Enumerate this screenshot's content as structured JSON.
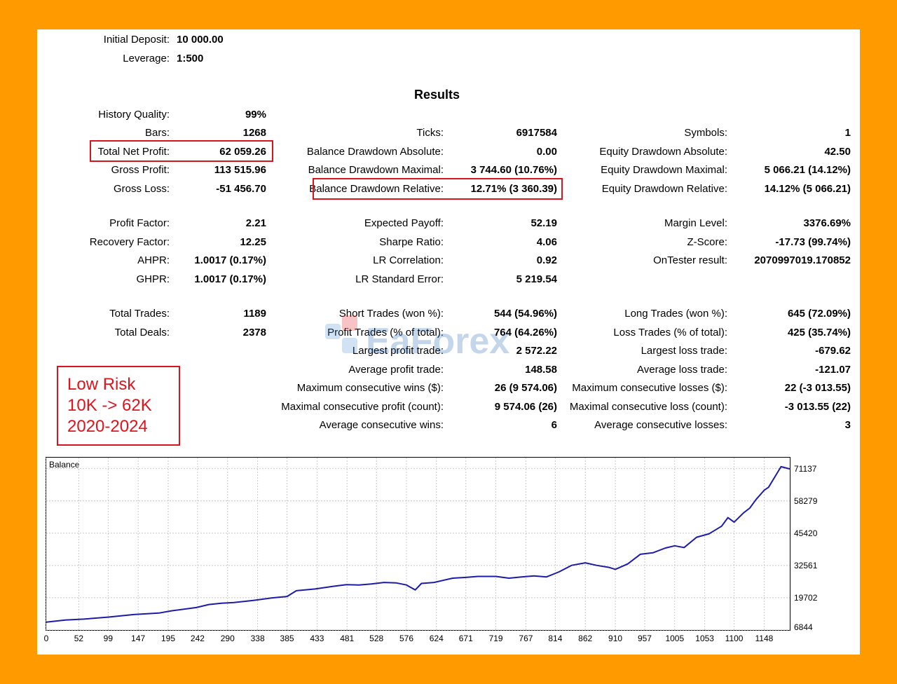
{
  "header": {
    "initial_deposit_label": "Initial Deposit:",
    "initial_deposit_value": "10 000.00",
    "leverage_label": "Leverage:",
    "leverage_value": "1:500"
  },
  "results_title": "Results",
  "col1": [
    {
      "label": "History Quality:",
      "value": "99%"
    },
    {
      "label": "Bars:",
      "value": "1268"
    },
    {
      "label": "Total Net Profit:",
      "value": "62 059.26"
    },
    {
      "label": "Gross Profit:",
      "value": "113 515.96"
    },
    {
      "label": "Gross Loss:",
      "value": "-51 456.70"
    },
    {
      "label": "Profit Factor:",
      "value": "2.21"
    },
    {
      "label": "Recovery Factor:",
      "value": "12.25"
    },
    {
      "label": "AHPR:",
      "value": "1.0017 (0.17%)"
    },
    {
      "label": "GHPR:",
      "value": "1.0017 (0.17%)"
    },
    {
      "label": "Total Trades:",
      "value": "1189"
    },
    {
      "label": "Total Deals:",
      "value": "2378"
    }
  ],
  "col2": [
    {
      "label": "Ticks:",
      "value": "6917584"
    },
    {
      "label": "Balance Drawdown Absolute:",
      "value": "0.00"
    },
    {
      "label": "Balance Drawdown Maximal:",
      "value": "3 744.60 (10.76%)"
    },
    {
      "label": "Balance Drawdown Relative:",
      "value": "12.71% (3 360.39)"
    },
    {
      "label": "Expected Payoff:",
      "value": "52.19"
    },
    {
      "label": "Sharpe Ratio:",
      "value": "4.06"
    },
    {
      "label": "LR Correlation:",
      "value": "0.92"
    },
    {
      "label": "LR Standard Error:",
      "value": "5 219.54"
    },
    {
      "label": "Short Trades (won %):",
      "value": "544 (54.96%)"
    },
    {
      "label": "Profit Trades (% of total):",
      "value": "764 (64.26%)"
    },
    {
      "label": "Largest profit trade:",
      "value": "2 572.22"
    },
    {
      "label": "Average profit trade:",
      "value": "148.58"
    },
    {
      "label": "Maximum consecutive wins ($):",
      "value": "26 (9 574.06)"
    },
    {
      "label": "Maximal consecutive profit (count):",
      "value": "9 574.06 (26)"
    },
    {
      "label": "Average consecutive wins:",
      "value": "6"
    }
  ],
  "col3": [
    {
      "label": "Symbols:",
      "value": "1"
    },
    {
      "label": "Equity Drawdown Absolute:",
      "value": "42.50"
    },
    {
      "label": "Equity Drawdown Maximal:",
      "value": "5 066.21 (14.12%)"
    },
    {
      "label": "Equity Drawdown Relative:",
      "value": "14.12% (5 066.21)"
    },
    {
      "label": "Margin Level:",
      "value": "3376.69%"
    },
    {
      "label": "Z-Score:",
      "value": "-17.73 (99.74%)"
    },
    {
      "label": "OnTester result:",
      "value": "2070997019.170852"
    },
    {
      "label": "Long Trades (won %):",
      "value": "645 (72.09%)"
    },
    {
      "label": "Loss Trades (% of total):",
      "value": "425 (35.74%)"
    },
    {
      "label": "Largest loss trade:",
      "value": "-679.62"
    },
    {
      "label": "Average loss trade:",
      "value": "-121.07"
    },
    {
      "label": "Maximum consecutive losses ($):",
      "value": "22 (-3 013.55)"
    },
    {
      "label": "Maximal consecutive loss (count):",
      "value": "-3 013.55 (22)"
    },
    {
      "label": "Average consecutive losses:",
      "value": "3"
    }
  ],
  "note": {
    "line1": "Low Risk",
    "line2": "10K -> 62K",
    "line3": "2020-2024",
    "color": "#e0141c"
  },
  "watermark_text": "EaForex",
  "colors": {
    "frame": "#ff9a00",
    "highlight": "#d8141c",
    "line": "#1c1ca8"
  },
  "chart_data": {
    "type": "line",
    "title": "Balance",
    "xlabel": "",
    "ylabel": "",
    "x_ticks": [
      0,
      52,
      99,
      147,
      195,
      242,
      290,
      338,
      385,
      433,
      481,
      528,
      576,
      624,
      671,
      719,
      767,
      814,
      862,
      910,
      957,
      1005,
      1053,
      1100,
      1148
    ],
    "y_ticks": [
      6844,
      19702,
      32561,
      45420,
      58279,
      71137
    ],
    "xlim": [
      0,
      1189
    ],
    "ylim": [
      6844,
      75500
    ],
    "grid": true,
    "series": [
      {
        "name": "",
        "x": [
          0,
          30,
          60,
          100,
          140,
          180,
          200,
          240,
          260,
          280,
          300,
          330,
          360,
          385,
          400,
          430,
          460,
          480,
          500,
          520,
          540,
          560,
          576,
          590,
          600,
          620,
          650,
          671,
          690,
          719,
          740,
          760,
          780,
          800,
          820,
          840,
          862,
          880,
          900,
          910,
          930,
          950,
          970,
          990,
          1005,
          1020,
          1040,
          1060,
          1080,
          1090,
          1100,
          1115,
          1125,
          1135,
          1148,
          1155,
          1165,
          1175,
          1189
        ],
        "y": [
          10000,
          10800,
          11200,
          12000,
          13000,
          13600,
          14500,
          15800,
          17000,
          17500,
          17800,
          18600,
          19600,
          20200,
          22500,
          23200,
          24300,
          24900,
          24800,
          25200,
          25800,
          25600,
          24800,
          22800,
          25400,
          25800,
          27500,
          27800,
          28200,
          28200,
          27500,
          28000,
          28400,
          28000,
          30000,
          32600,
          33600,
          32600,
          31800,
          31000,
          33200,
          37000,
          37600,
          39500,
          40400,
          39700,
          43800,
          45200,
          48200,
          51600,
          49800,
          53500,
          55400,
          58800,
          62500,
          63700,
          67800,
          71900,
          71000
        ]
      }
    ]
  }
}
